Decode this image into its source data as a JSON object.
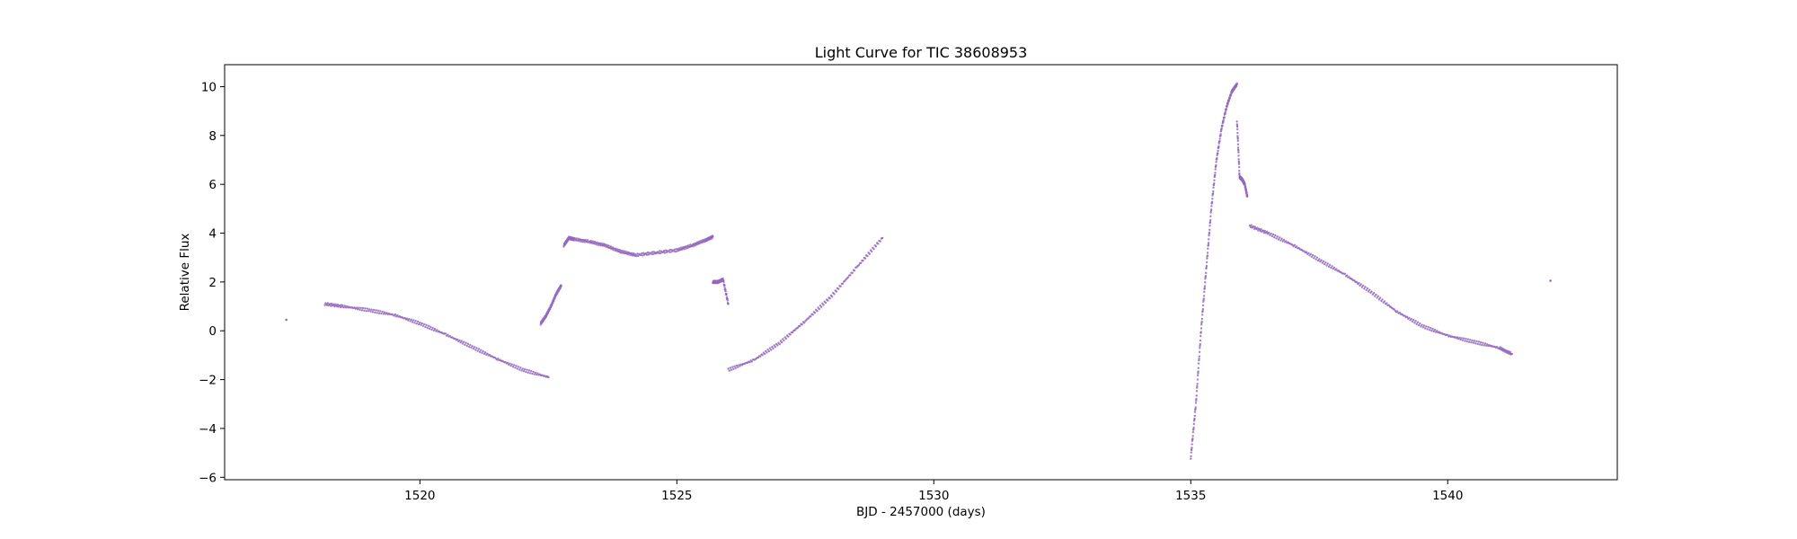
{
  "chart_data": {
    "type": "scatter",
    "title": "Light Curve for TIC 38608953",
    "xlabel": "BJD - 2457000 (days)",
    "ylabel": "Relative Flux",
    "xlim": [
      1516.2,
      1543.3
    ],
    "ylim": [
      -6.1,
      10.9
    ],
    "x_ticks": [
      1520,
      1525,
      1530,
      1535,
      1540
    ],
    "y_ticks": [
      -6,
      -4,
      -2,
      0,
      2,
      4,
      6,
      8,
      10
    ],
    "grid": false,
    "marker_color": "#9467bd",
    "series": [
      {
        "segments": [
          {
            "x": [
              1517.4
            ],
            "y": [
              0.45
            ]
          },
          {
            "x": [
              1518.15,
              1518.5,
              1519.0,
              1519.5,
              1520.0,
              1520.5,
              1521.0,
              1521.5,
              1522.0,
              1522.5
            ],
            "y": [
              1.1,
              1.0,
              0.85,
              0.65,
              0.3,
              -0.15,
              -0.65,
              -1.15,
              -1.6,
              -1.9
            ]
          },
          {
            "x": [
              1522.35,
              1522.45,
              1522.55,
              1522.65,
              1522.75
            ],
            "y": [
              0.3,
              0.6,
              1.0,
              1.5,
              1.85
            ]
          },
          {
            "x": [
              1522.8,
              1522.9,
              1523.0,
              1523.3,
              1523.6,
              1523.9,
              1524.2,
              1524.6,
              1525.0,
              1525.3,
              1525.55,
              1525.7
            ],
            "y": [
              3.5,
              3.8,
              3.75,
              3.65,
              3.5,
              3.25,
              3.1,
              3.2,
              3.3,
              3.5,
              3.7,
              3.85
            ]
          },
          {
            "x": [
              1525.7,
              1525.8,
              1525.9,
              1526.0
            ],
            "y": [
              2.0,
              2.0,
              2.1,
              1.1
            ]
          },
          {
            "x": [
              1526.0,
              1526.5,
              1527.0,
              1527.5,
              1528.0,
              1528.5,
              1529.0
            ],
            "y": [
              -1.6,
              -1.2,
              -0.5,
              0.4,
              1.4,
              2.6,
              3.8
            ]
          },
          {
            "x": [
              1535.0,
              1535.1,
              1535.2,
              1535.3,
              1535.4,
              1535.5,
              1535.6,
              1535.7,
              1535.8,
              1535.9
            ],
            "y": [
              -5.2,
              -3.0,
              0.0,
              2.5,
              5.0,
              7.0,
              8.3,
              9.2,
              9.8,
              10.1
            ]
          },
          {
            "x": [
              1535.9,
              1535.95,
              1536.0,
              1536.05,
              1536.1
            ],
            "y": [
              8.6,
              6.3,
              6.2,
              6.0,
              5.5
            ]
          },
          {
            "x": [
              1536.15,
              1536.5,
              1537.0,
              1537.5,
              1538.0,
              1538.5,
              1539.0,
              1539.5,
              1540.0,
              1540.5,
              1541.0,
              1541.25
            ],
            "y": [
              4.3,
              4.0,
              3.5,
              2.9,
              2.3,
              1.6,
              0.8,
              0.2,
              -0.2,
              -0.45,
              -0.7,
              -0.95
            ]
          },
          {
            "x": [
              1542.0
            ],
            "y": [
              2.05
            ]
          }
        ]
      }
    ]
  }
}
